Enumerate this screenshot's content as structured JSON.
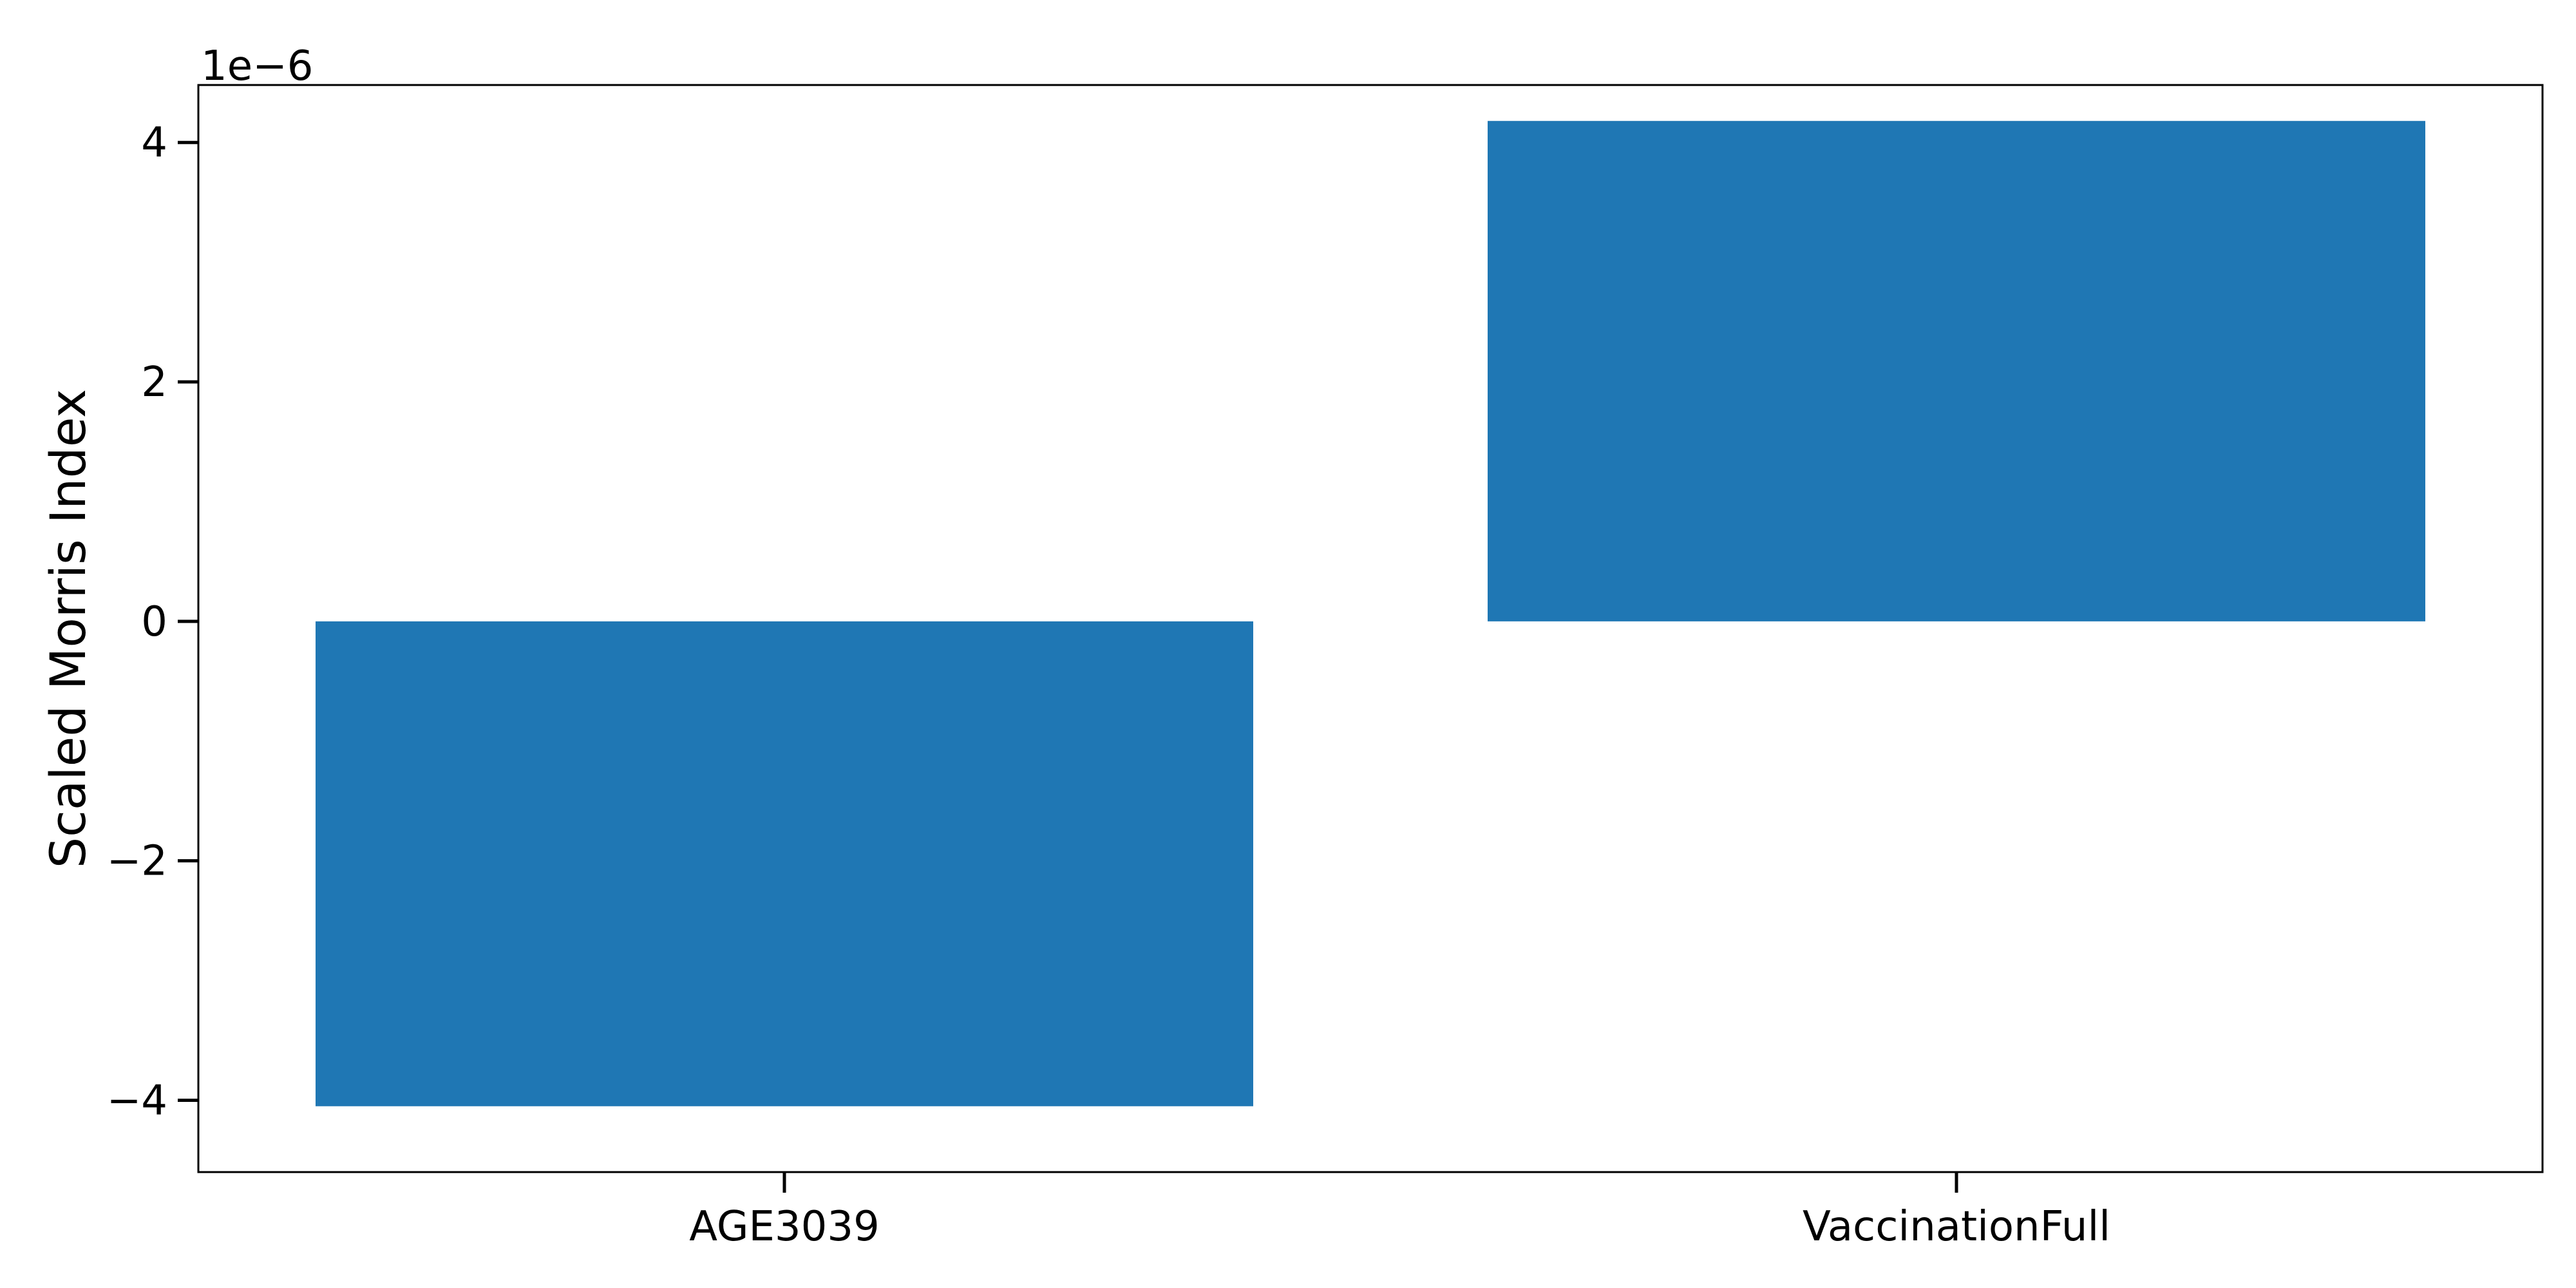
{
  "chart_data": {
    "type": "bar",
    "categories": [
      "AGE3039",
      "VaccinationFull"
    ],
    "values": [
      -4.05e-06,
      4.18e-06
    ],
    "title": "",
    "xlabel": "",
    "ylabel": "Scaled Morris Index",
    "ylim": [
      -4.6e-06,
      4.48e-06
    ],
    "y_ticks": [
      -4e-06,
      -2e-06,
      0,
      2e-06,
      4e-06
    ],
    "y_tick_labels": [
      "−4",
      "−2",
      "0",
      "2",
      "4"
    ],
    "y_offset_label": "1e−6",
    "bar_color": "#1f77b4",
    "grid": false,
    "legend": "none"
  }
}
